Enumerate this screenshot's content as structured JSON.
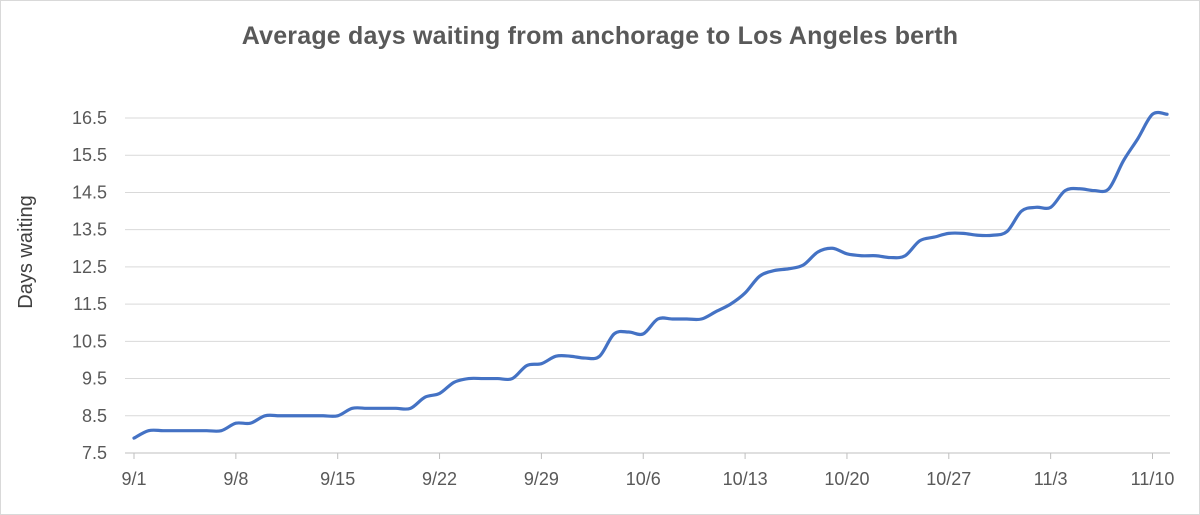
{
  "chart_data": {
    "type": "line",
    "title": "Average days waiting from anchorage to Los Angeles berth",
    "xlabel": "",
    "ylabel": "Days waiting",
    "ylim": [
      7.5,
      16.5
    ],
    "y_ticks": [
      "7.5",
      "8.5",
      "9.5",
      "10.5",
      "11.5",
      "12.5",
      "13.5",
      "14.5",
      "15.5",
      "16.5"
    ],
    "x_ticks": [
      "9/1",
      "9/8",
      "9/15",
      "9/22",
      "9/29",
      "10/6",
      "10/13",
      "10/20",
      "10/27",
      "11/3",
      "11/10"
    ],
    "grid": true,
    "legend": "none",
    "line_color": "#4472c4",
    "series": [
      {
        "x": [
          "9/1",
          "9/2",
          "9/3",
          "9/4",
          "9/5",
          "9/6",
          "9/7",
          "9/8",
          "9/9",
          "9/10",
          "9/11",
          "9/12",
          "9/13",
          "9/14",
          "9/15",
          "9/16",
          "9/17",
          "9/18",
          "9/19",
          "9/20",
          "9/21",
          "9/22",
          "9/23",
          "9/24",
          "9/25",
          "9/26",
          "9/27",
          "9/28",
          "9/29",
          "9/30",
          "10/1",
          "10/2",
          "10/3",
          "10/4",
          "10/5",
          "10/6",
          "10/7",
          "10/8",
          "10/9",
          "10/10",
          "10/11",
          "10/12",
          "10/13",
          "10/14",
          "10/15",
          "10/16",
          "10/17",
          "10/18",
          "10/19",
          "10/20",
          "10/21",
          "10/22",
          "10/23",
          "10/24",
          "10/25",
          "10/26",
          "10/27",
          "10/28",
          "10/29",
          "10/30",
          "10/31",
          "11/1",
          "11/2",
          "11/3",
          "11/4",
          "11/5",
          "11/6",
          "11/7",
          "11/8",
          "11/9",
          "11/10",
          "11/11"
        ],
        "values": [
          7.9,
          8.1,
          8.1,
          8.1,
          8.1,
          8.1,
          8.1,
          8.3,
          8.3,
          8.5,
          8.5,
          8.5,
          8.5,
          8.5,
          8.5,
          8.7,
          8.7,
          8.7,
          8.7,
          8.7,
          9.0,
          9.1,
          9.4,
          9.5,
          9.5,
          9.5,
          9.5,
          9.85,
          9.9,
          10.1,
          10.1,
          10.05,
          10.1,
          10.7,
          10.75,
          10.7,
          11.1,
          11.1,
          11.1,
          11.1,
          11.3,
          11.5,
          11.8,
          12.25,
          12.4,
          12.45,
          12.55,
          12.9,
          13.0,
          12.85,
          12.8,
          12.8,
          12.75,
          12.8,
          13.2,
          13.3,
          13.4,
          13.4,
          13.35,
          13.35,
          13.45,
          14.0,
          14.1,
          14.1,
          14.55,
          14.6,
          14.55,
          14.6,
          15.35,
          15.95,
          16.6,
          16.6
        ]
      }
    ]
  }
}
